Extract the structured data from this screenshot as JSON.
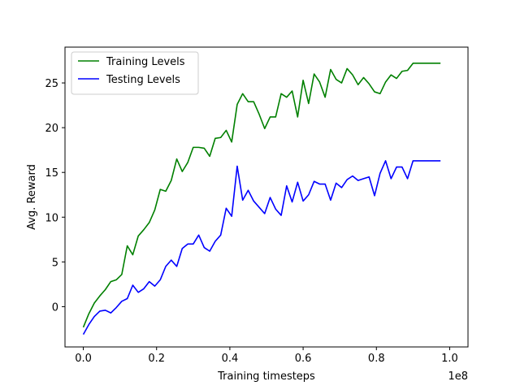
{
  "chart_data": {
    "type": "line",
    "title": "",
    "xlabel": "Training timesteps",
    "ylabel": "Avg. Reward",
    "x_offset_text": "1e8",
    "xlim": [
      -0.05,
      1.05
    ],
    "ylim": [
      -4.5,
      29
    ],
    "x_ticks": [
      0.0,
      0.2,
      0.4,
      0.6,
      0.8,
      1.0
    ],
    "x_tick_labels": [
      "0.0",
      "0.2",
      "0.4",
      "0.6",
      "0.8",
      "1.0"
    ],
    "y_ticks": [
      0,
      5,
      10,
      15,
      20,
      25
    ],
    "y_tick_labels": [
      "0",
      "5",
      "10",
      "15",
      "20",
      "25"
    ],
    "grid": false,
    "legend_position": "upper-left",
    "x": [
      0.0,
      0.015,
      0.03,
      0.045,
      0.06,
      0.075,
      0.09,
      0.105,
      0.12,
      0.135,
      0.15,
      0.165,
      0.18,
      0.195,
      0.21,
      0.225,
      0.24,
      0.255,
      0.27,
      0.285,
      0.3,
      0.315,
      0.33,
      0.345,
      0.36,
      0.375,
      0.39,
      0.405,
      0.42,
      0.435,
      0.45,
      0.465,
      0.48,
      0.495,
      0.51,
      0.525,
      0.54,
      0.555,
      0.57,
      0.585,
      0.6,
      0.615,
      0.63,
      0.645,
      0.66,
      0.675,
      0.69,
      0.705,
      0.72,
      0.735,
      0.75,
      0.765,
      0.78,
      0.795,
      0.81,
      0.825,
      0.84,
      0.855,
      0.87,
      0.885,
      0.9,
      0.915,
      0.93,
      0.945,
      0.96,
      0.975
    ],
    "series": [
      {
        "name": "Training Levels",
        "color": "#008000",
        "values": [
          -2.3,
          -0.8,
          0.4,
          1.2,
          1.9,
          2.8,
          3.0,
          3.6,
          6.8,
          5.8,
          7.9,
          8.6,
          9.4,
          10.8,
          13.1,
          12.9,
          14.1,
          16.5,
          15.1,
          16.1,
          17.8,
          17.8,
          17.7,
          16.8,
          18.8,
          18.9,
          19.7,
          18.4,
          22.6,
          23.8,
          22.9,
          22.9,
          21.5,
          19.9,
          21.2,
          21.2,
          23.8,
          23.4,
          24.1,
          21.2,
          25.3,
          22.7,
          26.0,
          25.1,
          23.4,
          26.5,
          25.4,
          25.0,
          26.6,
          25.9,
          24.8,
          25.6,
          24.9,
          24.0,
          23.8,
          25.1,
          25.9,
          25.5,
          26.3,
          26.4,
          27.2,
          27.2,
          27.2,
          27.2,
          27.2,
          27.2
        ]
      },
      {
        "name": "Testing Levels",
        "color": "#0000ff",
        "values": [
          -3.1,
          -2.0,
          -1.1,
          -0.5,
          -0.4,
          -0.7,
          -0.1,
          0.6,
          0.9,
          2.4,
          1.6,
          2.0,
          2.8,
          2.3,
          3.0,
          4.5,
          5.2,
          4.5,
          6.5,
          7.0,
          7.0,
          8.0,
          6.6,
          6.2,
          7.3,
          8.0,
          11.0,
          10.1,
          15.7,
          11.9,
          13.0,
          11.8,
          11.1,
          10.4,
          12.2,
          10.9,
          10.2,
          13.5,
          11.7,
          13.9,
          11.8,
          12.5,
          14.0,
          13.7,
          13.7,
          11.9,
          13.8,
          13.3,
          14.2,
          14.6,
          14.1,
          14.3,
          14.5,
          12.4,
          14.9,
          16.3,
          14.3,
          15.6,
          15.6,
          14.3,
          16.3,
          16.3,
          16.3,
          16.3,
          16.3,
          16.3
        ]
      }
    ]
  }
}
